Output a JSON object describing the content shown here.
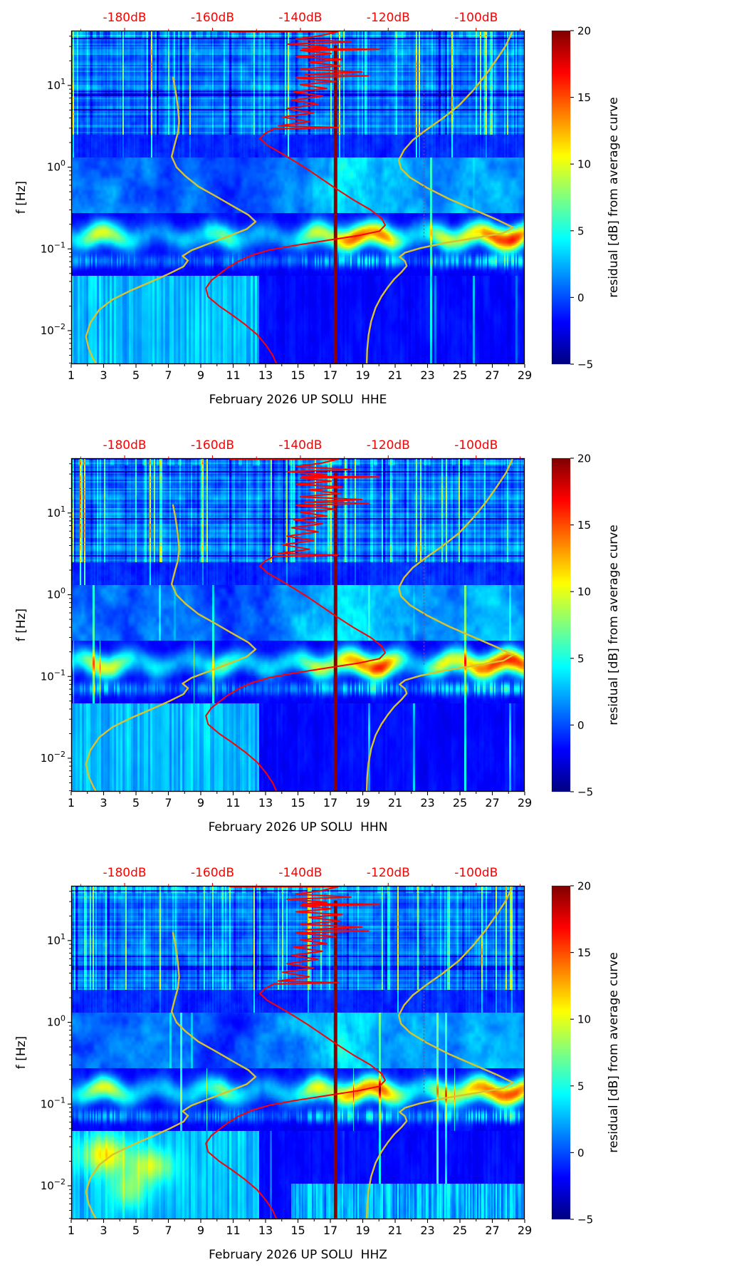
{
  "figure": {
    "description": "Three-panel seismic power spectral density residual spectrograms for station UP SOLU, February 2026",
    "components": [
      "HHE",
      "HHN",
      "HHZ"
    ]
  },
  "axes": {
    "x": {
      "range": [
        1,
        29
      ],
      "major_ticks": [
        1,
        3,
        5,
        7,
        9,
        11,
        13,
        15,
        17,
        19,
        21,
        23,
        25,
        27,
        29
      ],
      "minor_step": 1
    },
    "y": {
      "label": "f [Hz]",
      "scale": "log10",
      "decade_ticks_exp": [
        1,
        0,
        -1,
        -2
      ],
      "range_hz": [
        0.0039,
        46.8
      ]
    },
    "top": {
      "color": "#ff0000",
      "labels": [
        "-180dB",
        "-160dB",
        "-140dB",
        "-120dB",
        "-100dB"
      ],
      "values_db": [
        -180,
        -160,
        -140,
        -120,
        -100
      ],
      "mapping": {
        "db_ref": -180,
        "day_at_ref": 4.3,
        "day_per_db": 0.27125
      }
    }
  },
  "colorbar": {
    "label": "residual [dB] from average curve",
    "min": -5,
    "max": 20,
    "ticks": [
      "20",
      "15",
      "10",
      "5",
      "0",
      "−5"
    ],
    "tick_values": [
      20,
      15,
      10,
      5,
      0,
      -5
    ],
    "colormap": "jet"
  },
  "panels": [
    {
      "channel": "HHE",
      "xlabel": "February 2026 UP SOLU  HHE",
      "seed": 3,
      "extra_low_freq_blobs": false
    },
    {
      "channel": "HHN",
      "xlabel": "February 2026 UP SOLU  HHN",
      "seed": 7,
      "extra_low_freq_blobs": false
    },
    {
      "channel": "HHZ",
      "xlabel": "February 2026 UP SOLU  HHZ",
      "seed": 12,
      "extra_low_freq_blobs": true
    }
  ],
  "noise_curves": {
    "low_noise_reference": {
      "color": "#d8c32e",
      "width": 2.4,
      "points_db_hz": [
        [
          -169,
          12.5
        ],
        [
          -168.4,
          8.5
        ],
        [
          -167.9,
          5.5
        ],
        [
          -167.6,
          3.6
        ],
        [
          -167.9,
          2.6
        ],
        [
          -168.6,
          1.9
        ],
        [
          -169.3,
          1.35
        ],
        [
          -168.2,
          1.0
        ],
        [
          -166.2,
          0.78
        ],
        [
          -163.2,
          0.58
        ],
        [
          -159.2,
          0.44
        ],
        [
          -155.2,
          0.33
        ],
        [
          -151.8,
          0.26
        ],
        [
          -150.2,
          0.215
        ],
        [
          -152.2,
          0.175
        ],
        [
          -156.8,
          0.14
        ],
        [
          -161,
          0.115
        ],
        [
          -164.8,
          0.096
        ],
        [
          -166.8,
          0.082
        ],
        [
          -165.6,
          0.072
        ],
        [
          -166.6,
          0.061
        ],
        [
          -169.8,
          0.05
        ],
        [
          -173.8,
          0.04
        ],
        [
          -178.6,
          0.031
        ],
        [
          -182.8,
          0.024
        ],
        [
          -185.8,
          0.018
        ],
        [
          -187.8,
          0.0125
        ],
        [
          -188.8,
          0.0085
        ],
        [
          -188.2,
          0.006
        ],
        [
          -187.2,
          0.0046
        ],
        [
          -186.6,
          0.004
        ]
      ]
    },
    "high_noise_reference": {
      "color": "#d8c32e",
      "width": 2.4,
      "points_db_hz": [
        [
          -91.8,
          45
        ],
        [
          -93.2,
          31
        ],
        [
          -95.3,
          21
        ],
        [
          -97.8,
          13.5
        ],
        [
          -100.6,
          8.8
        ],
        [
          -103.9,
          5.7
        ],
        [
          -107.8,
          3.9
        ],
        [
          -111.4,
          2.85
        ],
        [
          -114.4,
          2.15
        ],
        [
          -116.4,
          1.62
        ],
        [
          -117.6,
          1.22
        ],
        [
          -117.1,
          0.96
        ],
        [
          -115.1,
          0.75
        ],
        [
          -111.2,
          0.56
        ],
        [
          -106.2,
          0.41
        ],
        [
          -100.4,
          0.3
        ],
        [
          -95,
          0.225
        ],
        [
          -91.6,
          0.183
        ],
        [
          -93.8,
          0.156
        ],
        [
          -100.6,
          0.135
        ],
        [
          -107.6,
          0.117
        ],
        [
          -112.8,
          0.102
        ],
        [
          -116.2,
          0.09
        ],
        [
          -117.4,
          0.08
        ],
        [
          -116.2,
          0.071
        ],
        [
          -115.8,
          0.062
        ],
        [
          -117,
          0.052
        ],
        [
          -118.6,
          0.043
        ],
        [
          -120.1,
          0.034
        ],
        [
          -121.6,
          0.026
        ],
        [
          -122.9,
          0.019
        ],
        [
          -123.9,
          0.013
        ],
        [
          -124.5,
          0.0088
        ],
        [
          -124.8,
          0.0058
        ],
        [
          -124.9,
          0.004
        ]
      ]
    },
    "average_spectrum": {
      "color": "#ff0000",
      "width": 2,
      "points_db_hz": [
        [
          -156,
          45.5
        ],
        [
          -146,
          45.5
        ],
        [
          -131.5,
          45.5
        ],
        [
          -135,
          41
        ],
        [
          -141,
          37
        ],
        [
          -128.5,
          34
        ],
        [
          -143,
          32
        ],
        [
          -134,
          29.5
        ],
        [
          -139.5,
          28.2
        ],
        [
          -122,
          27.6
        ],
        [
          -140,
          26.8
        ],
        [
          -133,
          24.5
        ],
        [
          -141,
          22.5
        ],
        [
          -130.5,
          20.8
        ],
        [
          -138,
          19.2
        ],
        [
          -131,
          17.3
        ],
        [
          -140,
          15.8
        ],
        [
          -126,
          14.6
        ],
        [
          -139,
          13.6
        ],
        [
          -124.5,
          13.1
        ],
        [
          -141,
          12.4
        ],
        [
          -132,
          11.2
        ],
        [
          -140,
          10.2
        ],
        [
          -134,
          9.2
        ],
        [
          -141.5,
          8.3
        ],
        [
          -135,
          7.4
        ],
        [
          -142,
          6.6
        ],
        [
          -136,
          5.9
        ],
        [
          -143,
          5.2
        ],
        [
          -137,
          4.6
        ],
        [
          -144,
          4.1
        ],
        [
          -138,
          3.6
        ],
        [
          -145,
          3.2
        ],
        [
          -131.5,
          3.05
        ],
        [
          -146,
          2.95
        ],
        [
          -148,
          2.6
        ],
        [
          -149.2,
          2.25
        ],
        [
          -147.5,
          1.85
        ],
        [
          -144.5,
          1.5
        ],
        [
          -141.5,
          1.2
        ],
        [
          -138.5,
          0.95
        ],
        [
          -135.5,
          0.74
        ],
        [
          -132,
          0.55
        ],
        [
          -128,
          0.4
        ],
        [
          -124,
          0.3
        ],
        [
          -121.5,
          0.235
        ],
        [
          -120.7,
          0.195
        ],
        [
          -122,
          0.165
        ],
        [
          -127,
          0.145
        ],
        [
          -134,
          0.127
        ],
        [
          -141,
          0.111
        ],
        [
          -147,
          0.097
        ],
        [
          -151,
          0.084
        ],
        [
          -154,
          0.071
        ],
        [
          -156.5,
          0.059
        ],
        [
          -158.5,
          0.049
        ],
        [
          -160.3,
          0.041
        ],
        [
          -161.5,
          0.033
        ],
        [
          -161,
          0.026
        ],
        [
          -158.5,
          0.02
        ],
        [
          -155.5,
          0.0155
        ],
        [
          -152.5,
          0.0118
        ],
        [
          -149.8,
          0.0089
        ],
        [
          -147.8,
          0.0066
        ],
        [
          -146.3,
          0.005
        ],
        [
          -145.5,
          0.004
        ]
      ]
    }
  },
  "markers": {
    "event_line": {
      "day": 17.32,
      "f_range_hz": [
        0.004,
        31
      ],
      "color": "#8b0000",
      "width": 5
    },
    "dotted_line": {
      "day": 22.78,
      "f_range_hz": [
        0.14,
        18
      ],
      "color": "#ff2400",
      "width": 1.4,
      "dash": [
        2,
        3
      ]
    }
  },
  "microseism_bright_episodes": [
    [
      2.9,
      1.0,
      8
    ],
    [
      10.4,
      0.7,
      5
    ],
    [
      16.2,
      0.8,
      7
    ],
    [
      18.6,
      1.0,
      11
    ],
    [
      20.4,
      0.7,
      9
    ],
    [
      23.9,
      0.6,
      6
    ],
    [
      26.4,
      1.2,
      10
    ],
    [
      28.4,
      0.9,
      11
    ]
  ],
  "chart_data": [
    {
      "type": "heatmap",
      "title": "",
      "xlabel": "February 2026 UP SOLU  HHE",
      "ylabel": "f [Hz]",
      "x_range_days": [
        1,
        29
      ],
      "x_ticks": [
        1,
        3,
        5,
        7,
        9,
        11,
        13,
        15,
        17,
        19,
        21,
        23,
        25,
        27,
        29
      ],
      "y_scale": "log",
      "y_range_hz": [
        0.0039,
        46.8
      ],
      "y_ticks_hz": [
        10,
        1,
        0.1,
        0.01
      ],
      "z_label": "residual [dB] from average curve",
      "z_range": [
        -5,
        20
      ],
      "colormap": "jet",
      "top_axis_db_ticks": [
        -180,
        -160,
        -140,
        -120,
        -100
      ],
      "overlays": [
        "average_spectrum (red)",
        "low_noise_reference (yellow)",
        "high_noise_reference (yellow)",
        "saturated dark-red event column at day 17.3",
        "dotted red line at day 22.8"
      ],
      "notable_features": [
        "bright microseism residual band near 0.1-0.2 Hz strongest on days 2-4, 16-21, 24-29",
        "vertical high-frequency noise streaks above 2.5 Hz",
        "quiet dark band 0.2-0.3 Hz",
        "light striped low-frequency region days 1-12 below 0.05 Hz"
      ]
    },
    {
      "type": "heatmap",
      "title": "",
      "xlabel": "February 2026 UP SOLU  HHN",
      "ylabel": "f [Hz]",
      "x_range_days": [
        1,
        29
      ],
      "x_ticks": [
        1,
        3,
        5,
        7,
        9,
        11,
        13,
        15,
        17,
        19,
        21,
        23,
        25,
        27,
        29
      ],
      "y_scale": "log",
      "y_range_hz": [
        0.0039,
        46.8
      ],
      "y_ticks_hz": [
        10,
        1,
        0.1,
        0.01
      ],
      "z_label": "residual [dB] from average curve",
      "z_range": [
        -5,
        20
      ],
      "colormap": "jet",
      "top_axis_db_ticks": [
        -180,
        -160,
        -140,
        -120,
        -100
      ],
      "overlays": [
        "average_spectrum (red)",
        "low_noise_reference (yellow)",
        "high_noise_reference (yellow)",
        "saturated dark-red event column at day 17.3",
        "dotted red line at day 22.8"
      ],
      "notable_features": [
        "same structure as HHE with slightly different speckle"
      ]
    },
    {
      "type": "heatmap",
      "title": "",
      "xlabel": "February 2026 UP SOLU  HHZ",
      "ylabel": "f [Hz]",
      "x_range_days": [
        1,
        29
      ],
      "x_ticks": [
        1,
        3,
        5,
        7,
        9,
        11,
        13,
        15,
        17,
        19,
        21,
        23,
        25,
        27,
        29
      ],
      "y_scale": "log",
      "y_range_hz": [
        0.0039,
        46.8
      ],
      "y_ticks_hz": [
        10,
        1,
        0.1,
        0.01
      ],
      "z_label": "residual [dB] from average curve",
      "z_range": [
        -5,
        20
      ],
      "colormap": "jet",
      "top_axis_db_ticks": [
        -180,
        -160,
        -140,
        -120,
        -100
      ],
      "overlays": [
        "average_spectrum (red)",
        "low_noise_reference (yellow)",
        "high_noise_reference (yellow)",
        "saturated dark-red event column at day 17.3",
        "dotted red line at day 22.8"
      ],
      "notable_features": [
        "extra bright yellow patches days 2-7 below 0.05 Hz",
        "speckled cyan band below 0.01 Hz after day 15"
      ]
    }
  ]
}
